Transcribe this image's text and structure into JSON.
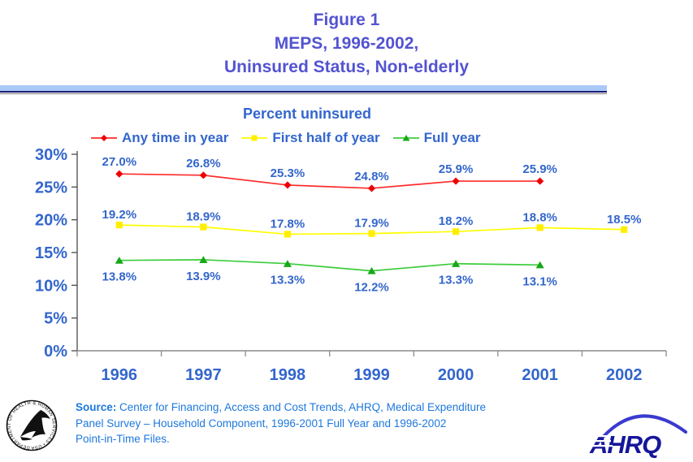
{
  "header": {
    "title_lines": [
      "Figure 1",
      "MEPS, 1996-2002,",
      "Uninsured Status, Non-elderly"
    ],
    "title_color": "#5353d1",
    "divider_band_color": "#a9c9f7",
    "divider_line_color": "#1a1a75"
  },
  "chart_data": {
    "type": "line",
    "title": "Percent uninsured",
    "categories": [
      "1996",
      "1997",
      "1998",
      "1999",
      "2000",
      "2001",
      "2002"
    ],
    "series": [
      {
        "name": "Any time in year",
        "color": "#ff2b2b",
        "marker": "diamond",
        "marker_color": "#ee0000",
        "label_side": "above",
        "values": [
          27.0,
          26.8,
          25.3,
          24.8,
          25.9,
          25.9,
          null
        ]
      },
      {
        "name": "First half of year",
        "color": "#ffff00",
        "marker": "square",
        "marker_color": "#ffee00",
        "label_side": "above",
        "values": [
          19.2,
          18.9,
          17.8,
          17.9,
          18.2,
          18.8,
          18.5
        ]
      },
      {
        "name": "Full year",
        "color": "#3dcc3d",
        "marker": "triangle",
        "marker_color": "#17a817",
        "label_side": "below",
        "values": [
          13.8,
          13.9,
          13.3,
          12.2,
          13.3,
          13.1,
          null
        ]
      }
    ],
    "y_ticks": [
      {
        "label": "30%",
        "value": 30
      },
      {
        "label": "25%",
        "value": 25
      },
      {
        "label": "20%",
        "value": 20
      },
      {
        "label": "15%",
        "value": 15
      },
      {
        "label": "10%",
        "value": 10
      },
      {
        "label": "5%",
        "value": 5
      },
      {
        "label": "0%",
        "value": 0
      }
    ],
    "ylim": [
      0,
      30
    ],
    "grid": false,
    "legend_position": "top",
    "label_color": "#3366cc",
    "y_axis_color": "#4a4a4a",
    "x_axis_color": "#8c8c8c"
  },
  "footer": {
    "source_label": "Source:",
    "source_lines": [
      "Center for Financing, Access and Cost Trends, AHRQ, Medical Expenditure",
      "Panel Survey – Household Component, 1996-2001 Full Year and 1996-2002",
      "Point-in-Time Files."
    ],
    "source_color": "#1e78dc",
    "hhs_seal_text": "DEPARTMENT OF HEALTH & HUMAN SERVICES • USA",
    "ahrq_logo_text": "AHRQ"
  }
}
